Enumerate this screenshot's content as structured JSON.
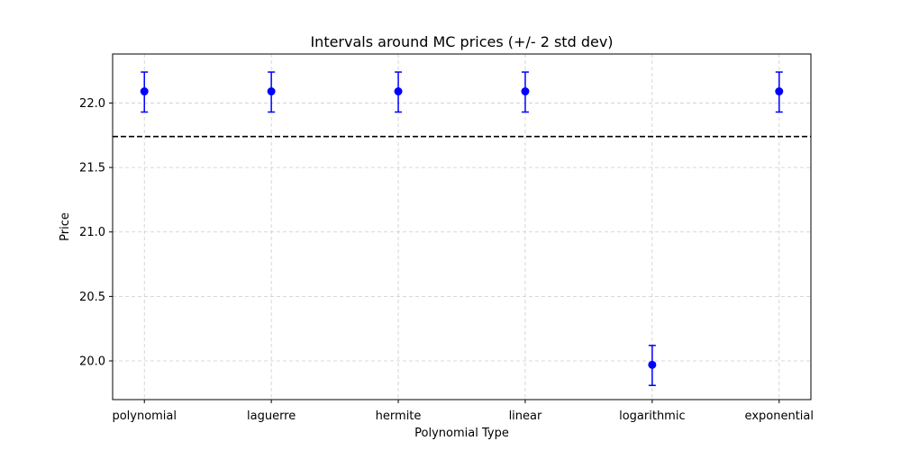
{
  "chart_data": {
    "type": "errorbar",
    "title": "Intervals around MC prices (+/- 2 std dev)",
    "xlabel": "Polynomial Type",
    "ylabel": "Price",
    "categories": [
      "polynomial",
      "laguerre",
      "hermite",
      "linear",
      "logarithmic",
      "exponential"
    ],
    "values": [
      22.09,
      22.09,
      22.09,
      22.09,
      19.97,
      22.09
    ],
    "lower": [
      21.93,
      21.93,
      21.93,
      21.93,
      19.81,
      21.93
    ],
    "upper": [
      22.24,
      22.24,
      22.24,
      22.24,
      20.12,
      22.24
    ],
    "reference_line": 21.74,
    "ylim": [
      19.7,
      22.38
    ],
    "yticks": [
      "20.0",
      "20.5",
      "21.0",
      "21.5",
      "22.0"
    ],
    "grid": true,
    "colors": {
      "marker": "#0000ff",
      "reference": "#000000",
      "grid": "#cccccc"
    }
  }
}
